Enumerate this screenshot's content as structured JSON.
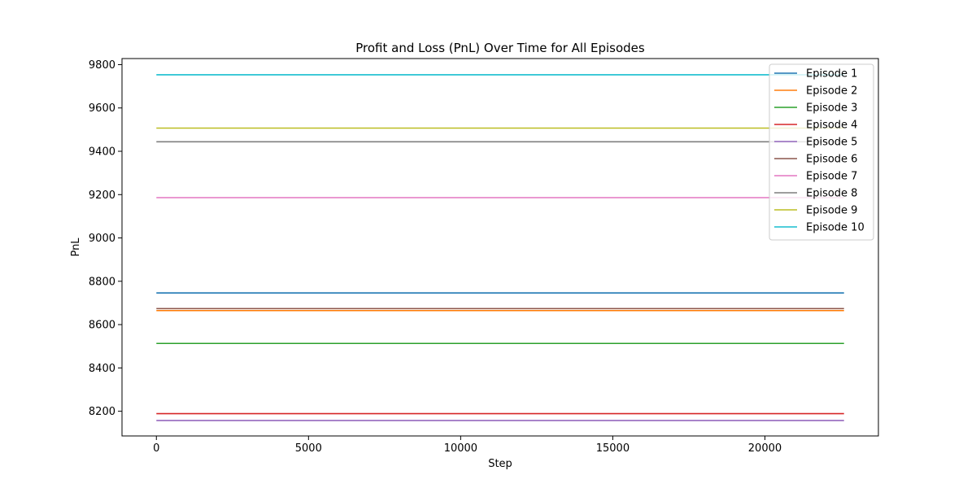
{
  "chart_data": {
    "type": "line",
    "title": "Profit and Loss (PnL) Over Time for All Episodes",
    "xlabel": "Step",
    "ylabel": "PnL",
    "xlim": [
      -1130,
      23730
    ],
    "ylim": [
      8086,
      9828
    ],
    "xticks": [
      0,
      5000,
      10000,
      15000,
      20000
    ],
    "yticks": [
      8200,
      8400,
      8600,
      8800,
      9000,
      9200,
      9400,
      9600,
      9800
    ],
    "grid": false,
    "legend_position": "top-right",
    "x": [
      0,
      22600
    ],
    "series": [
      {
        "name": "Episode 1",
        "color": "#1f77b4",
        "values": [
          8746,
          8746
        ]
      },
      {
        "name": "Episode 2",
        "color": "#ff7f0e",
        "values": [
          8665,
          8665
        ]
      },
      {
        "name": "Episode 3",
        "color": "#2ca02c",
        "values": [
          8513,
          8513
        ]
      },
      {
        "name": "Episode 4",
        "color": "#d62728",
        "values": [
          8189,
          8189
        ]
      },
      {
        "name": "Episode 5",
        "color": "#9467bd",
        "values": [
          8157,
          8157
        ]
      },
      {
        "name": "Episode 6",
        "color": "#8c564b",
        "values": [
          8674,
          8674
        ]
      },
      {
        "name": "Episode 7",
        "color": "#e377c2",
        "values": [
          9186,
          9186
        ]
      },
      {
        "name": "Episode 8",
        "color": "#7f7f7f",
        "values": [
          9444,
          9444
        ]
      },
      {
        "name": "Episode 9",
        "color": "#bcbd22",
        "values": [
          9507,
          9507
        ]
      },
      {
        "name": "Episode 10",
        "color": "#17becf",
        "values": [
          9753,
          9753
        ]
      }
    ]
  }
}
